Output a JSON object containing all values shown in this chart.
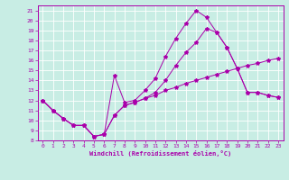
{
  "xlabel": "Windchill (Refroidissement éolien,°C)",
  "bg_color": "#c8ede4",
  "line_color": "#aa00aa",
  "xlim": [
    -0.5,
    23.5
  ],
  "ylim": [
    8,
    21.5
  ],
  "xticks": [
    0,
    1,
    2,
    3,
    4,
    5,
    6,
    7,
    8,
    9,
    10,
    11,
    12,
    13,
    14,
    15,
    16,
    17,
    18,
    19,
    20,
    21,
    22,
    23
  ],
  "yticks": [
    8,
    9,
    10,
    11,
    12,
    13,
    14,
    15,
    16,
    17,
    18,
    19,
    20,
    21
  ],
  "line1_x": [
    0,
    1,
    2,
    3,
    4,
    5,
    6,
    7,
    8,
    9,
    10,
    11,
    12,
    13,
    14,
    15,
    16,
    17,
    18,
    19,
    20,
    21,
    22,
    23
  ],
  "line1_y": [
    12,
    11,
    10.2,
    9.5,
    9.5,
    8.4,
    8.6,
    10.5,
    11.5,
    11.8,
    12.2,
    12.5,
    13.0,
    13.3,
    13.7,
    14.0,
    14.3,
    14.6,
    14.9,
    15.2,
    15.5,
    15.7,
    16.0,
    16.2
  ],
  "line2_x": [
    0,
    1,
    2,
    3,
    4,
    5,
    6,
    7,
    8,
    9,
    10,
    11,
    12,
    13,
    14,
    15,
    16,
    17,
    18,
    19,
    20,
    21,
    22,
    23
  ],
  "line2_y": [
    12,
    11,
    10.2,
    9.5,
    9.5,
    8.4,
    8.6,
    14.5,
    11.8,
    12.0,
    13.0,
    14.2,
    16.4,
    18.2,
    19.7,
    21.0,
    20.3,
    18.8,
    17.3,
    15.2,
    12.8,
    12.8,
    12.5,
    12.3
  ],
  "line3_x": [
    0,
    1,
    2,
    3,
    4,
    5,
    6,
    7,
    8,
    9,
    10,
    11,
    12,
    13,
    14,
    15,
    16,
    17,
    18,
    19,
    20,
    21,
    22,
    23
  ],
  "line3_y": [
    12,
    11,
    10.2,
    9.5,
    9.5,
    8.4,
    8.6,
    10.5,
    11.5,
    11.8,
    12.2,
    12.8,
    14.0,
    15.5,
    16.8,
    17.8,
    19.2,
    18.8,
    17.3,
    15.2,
    12.8,
    12.8,
    12.5,
    12.3
  ]
}
